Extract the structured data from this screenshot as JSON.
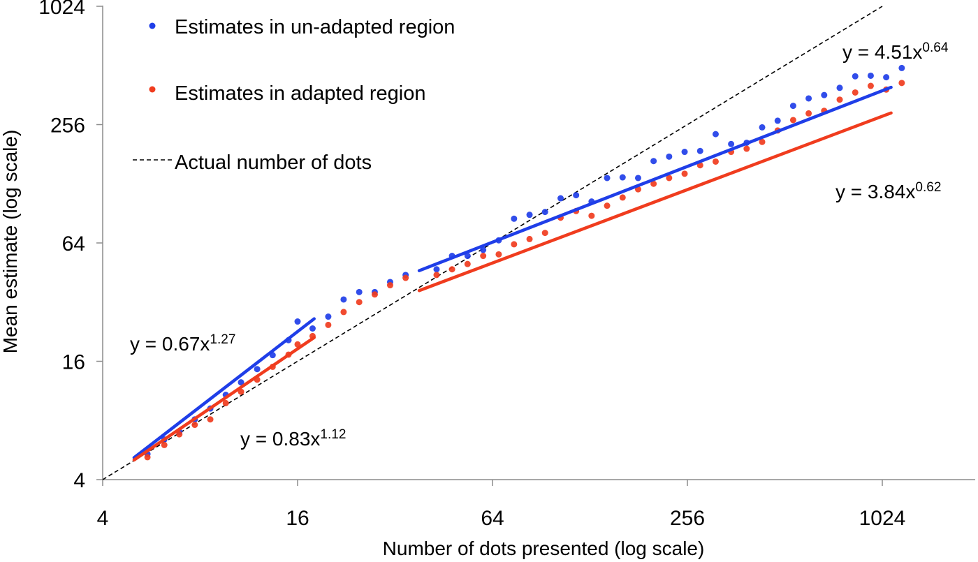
{
  "chart_data": {
    "type": "scatter",
    "xlabel": "Number of dots presented (log scale)",
    "ylabel": "Mean estimate (log scale)",
    "x_scale": "log2",
    "y_scale": "log2",
    "xlim": [
      4,
      1600
    ],
    "ylim": [
      4,
      1024
    ],
    "x_ticks": [
      4,
      16,
      64,
      256,
      1024
    ],
    "y_ticks": [
      4,
      16,
      64,
      256,
      1024
    ],
    "x_tick_labels": [
      "4",
      "16",
      "64",
      "256",
      "1024"
    ],
    "y_tick_labels": [
      "4",
      "16",
      "64",
      "256",
      "1024"
    ],
    "legend_position": "top-left",
    "series": [
      {
        "name": "Estimates in un-adapted region",
        "color": "#1f3ee8",
        "points": [
          [
            5.5,
            5.4
          ],
          [
            6.2,
            6.4
          ],
          [
            6.9,
            7.0
          ],
          [
            7.7,
            8.1
          ],
          [
            8.6,
            9.2
          ],
          [
            9.6,
            10.8
          ],
          [
            10.7,
            12.5
          ],
          [
            12.0,
            14.6
          ],
          [
            13.4,
            17.2
          ],
          [
            15.0,
            20.5
          ],
          [
            16.0,
            25.5
          ],
          [
            17.8,
            23.5
          ],
          [
            19.9,
            27.0
          ],
          [
            22.2,
            33.0
          ],
          [
            24.8,
            36.0
          ],
          [
            27.7,
            36.0
          ],
          [
            30.9,
            40.5
          ],
          [
            34.5,
            44.0
          ],
          [
            43.0,
            47.0
          ],
          [
            48.0,
            55.0
          ],
          [
            53.6,
            55.0
          ],
          [
            59.9,
            59.0
          ],
          [
            66.9,
            66.0
          ],
          [
            74.6,
            85.0
          ],
          [
            83.3,
            89.0
          ],
          [
            93.0,
            92.0
          ],
          [
            103.9,
            108.0
          ],
          [
            116.0,
            112.0
          ],
          [
            129.5,
            104.0
          ],
          [
            144.6,
            137.0
          ],
          [
            161.5,
            138.0
          ],
          [
            180.3,
            137.0
          ],
          [
            201.3,
            167.0
          ],
          [
            224.8,
            176.0
          ],
          [
            251.0,
            186.0
          ],
          [
            280.3,
            188.0
          ],
          [
            313.0,
            229.0
          ],
          [
            349.4,
            204.0
          ],
          [
            390.2,
            207.0
          ],
          [
            435.7,
            248.0
          ],
          [
            486.5,
            268.0
          ],
          [
            543.2,
            319.0
          ],
          [
            606.5,
            348.0
          ],
          [
            677.3,
            362.0
          ],
          [
            756.3,
            394.0
          ],
          [
            844.6,
            451.0
          ],
          [
            943.1,
            454.0
          ],
          [
            1053.0,
            446.0
          ],
          [
            1176.0,
            497.0
          ]
        ]
      },
      {
        "name": "Estimates in adapted region",
        "color": "#f03c1e",
        "points": [
          [
            5.5,
            5.2
          ],
          [
            6.2,
            6.0
          ],
          [
            6.9,
            6.8
          ],
          [
            7.7,
            7.6
          ],
          [
            8.6,
            8.1
          ],
          [
            9.6,
            9.8
          ],
          [
            10.7,
            11.2
          ],
          [
            12.0,
            12.9
          ],
          [
            13.4,
            15.0
          ],
          [
            15.0,
            17.3
          ],
          [
            16.0,
            19.5
          ],
          [
            17.8,
            21.5
          ],
          [
            19.9,
            24.5
          ],
          [
            22.2,
            28.5
          ],
          [
            24.8,
            32.0
          ],
          [
            27.7,
            35.0
          ],
          [
            30.9,
            39.0
          ],
          [
            34.5,
            42.5
          ],
          [
            43.0,
            44.0
          ],
          [
            48.0,
            47.0
          ],
          [
            53.6,
            50.0
          ],
          [
            59.9,
            55.0
          ],
          [
            66.9,
            56.0
          ],
          [
            74.6,
            63.0
          ],
          [
            83.3,
            67.0
          ],
          [
            93.0,
            72.0
          ],
          [
            103.9,
            86.0
          ],
          [
            116.0,
            93.0
          ],
          [
            129.5,
            88.0
          ],
          [
            144.6,
            99.0
          ],
          [
            161.5,
            109.0
          ],
          [
            180.3,
            120.0
          ],
          [
            201.3,
            128.0
          ],
          [
            224.8,
            137.0
          ],
          [
            251.0,
            144.0
          ],
          [
            280.3,
            159.0
          ],
          [
            313.0,
            166.0
          ],
          [
            349.4,
            186.0
          ],
          [
            390.2,
            193.0
          ],
          [
            435.7,
            209.0
          ],
          [
            486.5,
            239.0
          ],
          [
            543.2,
            270.0
          ],
          [
            606.5,
            292.0
          ],
          [
            677.3,
            301.0
          ],
          [
            756.3,
            343.0
          ],
          [
            844.6,
            373.0
          ],
          [
            943.1,
            403.0
          ],
          [
            1053.0,
            386.0
          ],
          [
            1176.0,
            417.0
          ]
        ]
      }
    ],
    "fits": [
      {
        "name": "un-adapted low",
        "color": "#1f3ee8",
        "a": 0.67,
        "b": 1.27,
        "x_range": [
          5.0,
          18.0
        ]
      },
      {
        "name": "adapted low",
        "color": "#f03c1e",
        "a": 0.83,
        "b": 1.12,
        "x_range": [
          5.0,
          18.0
        ]
      },
      {
        "name": "un-adapted high",
        "color": "#1f3ee8",
        "a": 4.51,
        "b": 0.64,
        "x_range": [
          38.0,
          1090.0
        ]
      },
      {
        "name": "adapted high",
        "color": "#f03c1e",
        "a": 3.84,
        "b": 0.62,
        "x_range": [
          38.0,
          1090.0
        ]
      }
    ],
    "identity_line": {
      "name": "Actual number of dots",
      "style": "dashed",
      "color": "#000000",
      "x_range": [
        4,
        1024
      ]
    },
    "legend": [
      {
        "label": "Estimates in un-adapted region",
        "marker": "dot",
        "color": "#1f3ee8"
      },
      {
        "label": "Estimates in adapted region",
        "marker": "dot",
        "color": "#f03c1e"
      },
      {
        "label": "Actual number of dots",
        "marker": "dashed-line",
        "color": "#000000"
      }
    ],
    "equations": {
      "low_unadapted": {
        "prefix": "y = 0.67x",
        "exponent": "1.27"
      },
      "low_adapted": {
        "prefix": "y = 0.83x",
        "exponent": "1.12"
      },
      "high_unadapted": {
        "prefix": "y = 4.51x",
        "exponent": "0.64"
      },
      "high_adapted": {
        "prefix": "y = 3.84x",
        "exponent": "0.62"
      }
    }
  }
}
